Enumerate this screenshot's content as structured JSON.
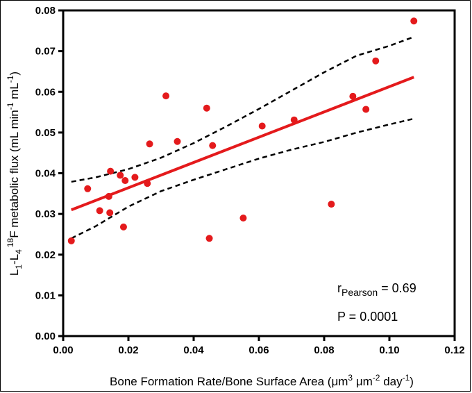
{
  "chart_data": {
    "type": "scatter",
    "xlabel": {
      "main": "Bone Formation Rate/Bone Surface Area (",
      "mu1": "μm",
      "sup1": "3",
      "mu2": " μm",
      "sup2": "-2",
      "tail": " day",
      "sup3": "-1",
      "close": ")"
    },
    "ylabel": {
      "L1": "L",
      "sub1": "1",
      "dash": "-L",
      "sub4": "4",
      "sup18": "18",
      "rest": "F metabolic flux (mL min",
      "supm1a": "-1",
      "mid": " mL",
      "supm1b": "-1",
      "close": ")"
    },
    "xlim": [
      0,
      0.12
    ],
    "ylim": [
      0,
      0.08
    ],
    "xticks": [
      "0.00",
      "0.02",
      "0.04",
      "0.06",
      "0.08",
      "0.10",
      "0.12"
    ],
    "yticks": [
      "0.00",
      "0.01",
      "0.02",
      "0.03",
      "0.04",
      "0.05",
      "0.06",
      "0.07",
      "0.08"
    ],
    "grid": false,
    "points": [
      {
        "x": 0.0025,
        "y": 0.0234
      },
      {
        "x": 0.0075,
        "y": 0.0362
      },
      {
        "x": 0.0112,
        "y": 0.0308
      },
      {
        "x": 0.014,
        "y": 0.0343
      },
      {
        "x": 0.0143,
        "y": 0.0303
      },
      {
        "x": 0.0145,
        "y": 0.0405
      },
      {
        "x": 0.0175,
        "y": 0.0395
      },
      {
        "x": 0.0185,
        "y": 0.0268
      },
      {
        "x": 0.019,
        "y": 0.0382
      },
      {
        "x": 0.022,
        "y": 0.039
      },
      {
        "x": 0.0258,
        "y": 0.0375
      },
      {
        "x": 0.0265,
        "y": 0.0472
      },
      {
        "x": 0.0315,
        "y": 0.059
      },
      {
        "x": 0.035,
        "y": 0.0478
      },
      {
        "x": 0.044,
        "y": 0.056
      },
      {
        "x": 0.0448,
        "y": 0.024
      },
      {
        "x": 0.0458,
        "y": 0.0468
      },
      {
        "x": 0.0552,
        "y": 0.029
      },
      {
        "x": 0.061,
        "y": 0.0516
      },
      {
        "x": 0.0708,
        "y": 0.0531
      },
      {
        "x": 0.0822,
        "y": 0.0324
      },
      {
        "x": 0.0888,
        "y": 0.0589
      },
      {
        "x": 0.0928,
        "y": 0.0557
      },
      {
        "x": 0.0958,
        "y": 0.0676
      },
      {
        "x": 0.1075,
        "y": 0.0774
      }
    ],
    "fit_line": {
      "x": [
        0.0025,
        0.1075
      ],
      "y": [
        0.031,
        0.0636
      ],
      "color": "#e41a1c"
    },
    "ci_upper": {
      "x": [
        0.0025,
        0.01,
        0.02,
        0.03,
        0.04,
        0.05,
        0.06,
        0.07,
        0.08,
        0.09,
        0.1,
        0.1075
      ],
      "y": [
        0.0379,
        0.039,
        0.041,
        0.0438,
        0.0474,
        0.0515,
        0.0558,
        0.0603,
        0.0648,
        0.0689,
        0.0713,
        0.0735
      ]
    },
    "ci_lower": {
      "x": [
        0.0025,
        0.01,
        0.02,
        0.03,
        0.04,
        0.05,
        0.06,
        0.07,
        0.08,
        0.09,
        0.1,
        0.1075
      ],
      "y": [
        0.024,
        0.027,
        0.0318,
        0.0356,
        0.0384,
        0.041,
        0.0436,
        0.0458,
        0.0477,
        0.05,
        0.052,
        0.0534
      ]
    },
    "point_color": "#e41a1c",
    "annotations": {
      "r_prefix": "r",
      "r_sub": "Pearson",
      "r_value": " = 0.69",
      "p_text": "P = 0.0001"
    }
  }
}
